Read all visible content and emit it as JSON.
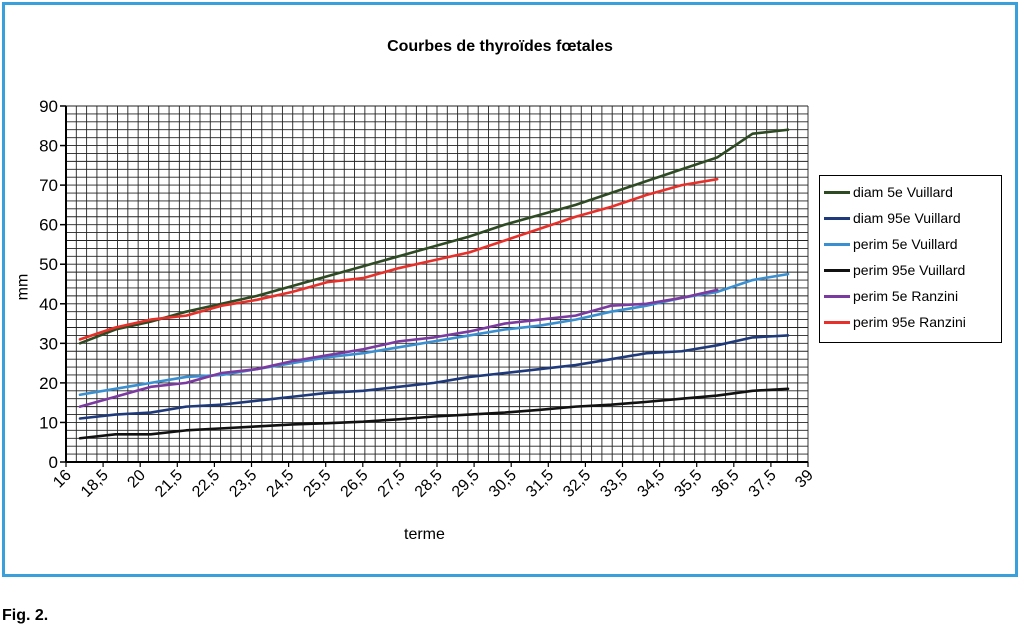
{
  "caption": "Fig. 2.",
  "chart_data": {
    "type": "line",
    "title": "Courbes de thyroïdes fœtales",
    "xlabel": "terme",
    "ylabel": "mm",
    "xlim": [
      16,
      39
    ],
    "ylim": [
      0,
      90
    ],
    "x_ticks": [
      "16",
      "18,5",
      "20",
      "21,5",
      "22,5",
      "23,5",
      "24,5",
      "25,5",
      "26,5",
      "27,5",
      "28,5",
      "29,5",
      "30,5",
      "31,5",
      "32,5",
      "33,5",
      "34,5",
      "35,5",
      "36,5",
      "37,5",
      "39"
    ],
    "y_ticks": [
      "0",
      "10",
      "20",
      "30",
      "40",
      "50",
      "60",
      "70",
      "80",
      "90"
    ],
    "grid": true,
    "legend_position": "right",
    "x_index": [
      0,
      1,
      2,
      3,
      4,
      5,
      6,
      7,
      8,
      9,
      10,
      11,
      12,
      13,
      14,
      15,
      16,
      17,
      18,
      19,
      20
    ],
    "series": [
      {
        "name": "diam 5e Vuillard",
        "color": "#2d4a22",
        "values": [
          30,
          33.5,
          35.5,
          38,
          40,
          42,
          44.5,
          47,
          49.5,
          52,
          54.5,
          57,
          60,
          62.5,
          65,
          68,
          71,
          74,
          77,
          83,
          84
        ]
      },
      {
        "name": "diam 95e Vuillard",
        "color": "#1f3a7a",
        "values": [
          11,
          12,
          12.5,
          14,
          14.5,
          15.5,
          16.5,
          17.5,
          18,
          19,
          20,
          21.5,
          22.5,
          23.5,
          24.5,
          26,
          27.5,
          28,
          29.5,
          31.5,
          32
        ]
      },
      {
        "name": "perim 5e Vuillard",
        "color": "#3a8fd0",
        "values": [
          17,
          18.5,
          20,
          21.5,
          22,
          23.5,
          25,
          26.5,
          27.5,
          29,
          30.5,
          32,
          33.5,
          34.5,
          36,
          38,
          39.5,
          41.5,
          43,
          46,
          47.5
        ]
      },
      {
        "name": "perim 95e Vuillard",
        "color": "#111111",
        "values": [
          6,
          7,
          7,
          8,
          8.5,
          9,
          9.5,
          9.8,
          10.2,
          10.8,
          11.5,
          12,
          12.5,
          13.2,
          14,
          14.5,
          15.2,
          16,
          16.8,
          18,
          18.5
        ]
      },
      {
        "name": "perim 5e Ranzini",
        "color": "#7b3aa0",
        "values": [
          14,
          16.5,
          19,
          20,
          22.5,
          23.5,
          25.5,
          27,
          28.5,
          30.5,
          31.5,
          33,
          35,
          36,
          37,
          39.5,
          40,
          41.5,
          43.5,
          null,
          null
        ]
      },
      {
        "name": "perim 95e Ranzini",
        "color": "#e8302a",
        "values": [
          31,
          34,
          36,
          37,
          39.5,
          41,
          43,
          45.5,
          46.5,
          49,
          51,
          53,
          56,
          59,
          62,
          64.5,
          67.5,
          70,
          71.5,
          null,
          null
        ]
      }
    ]
  }
}
